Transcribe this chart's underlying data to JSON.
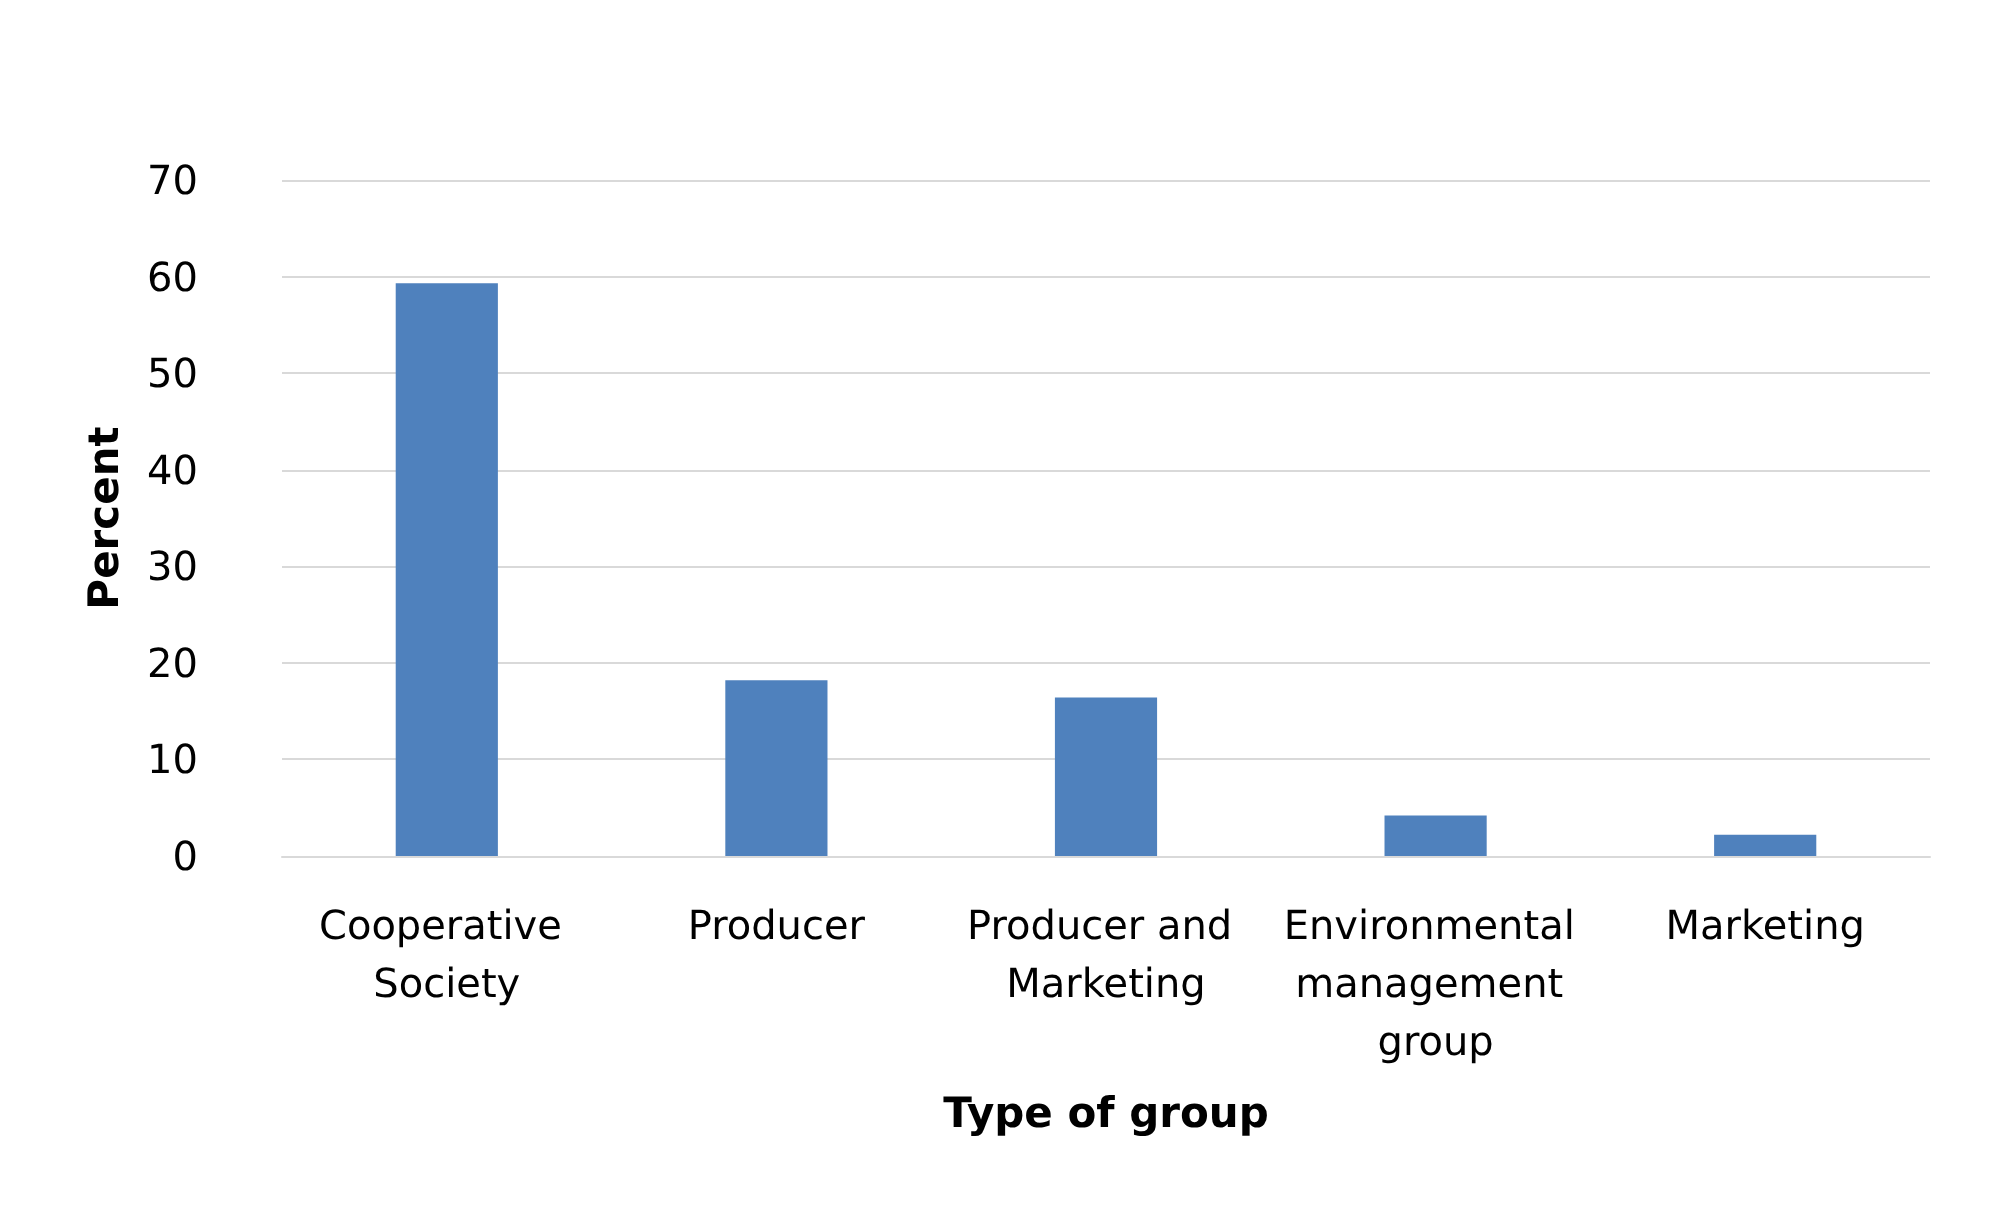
{
  "chart_data": {
    "type": "bar",
    "xlabel": "Type of group",
    "ylabel": "Percent",
    "categories": [
      "Cooperative Society",
      "Producer",
      "Producer and Marketing",
      "Environmental management group",
      "Marketing"
    ],
    "values": [
      59.3,
      18.2,
      16.4,
      4.2,
      2.2
    ],
    "color": "#4f81bd",
    "ylim": [
      0,
      70
    ],
    "yticks": [
      0,
      10,
      20,
      30,
      40,
      50,
      60,
      70
    ],
    "grid": "y"
  }
}
